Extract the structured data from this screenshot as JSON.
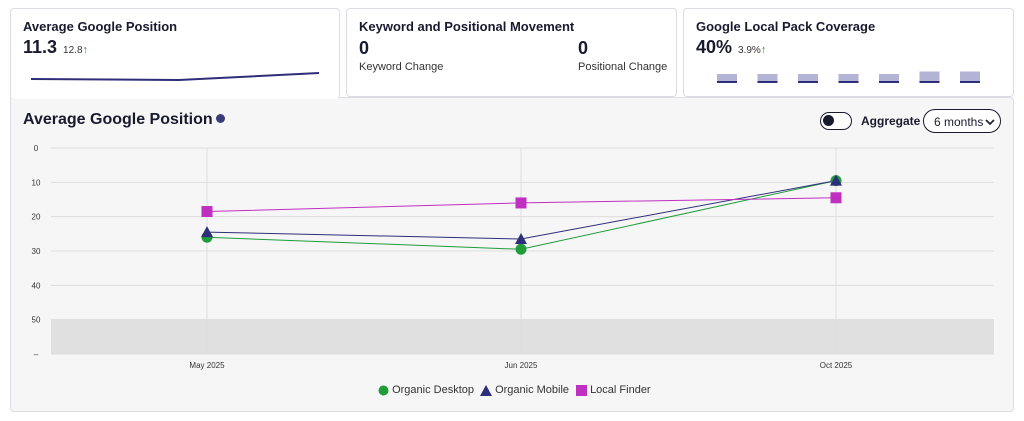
{
  "cards": {
    "avg_position": {
      "title": "Average Google Position",
      "value": "11.3",
      "delta": "12.8"
    },
    "movement": {
      "title": "Keyword and Positional Movement",
      "keyword_value": "0",
      "keyword_label": "Keyword Change",
      "positional_value": "0",
      "positional_label": "Positional Change"
    },
    "local_pack": {
      "title": "Google Local Pack Coverage",
      "value": "40%",
      "delta": "3.9%",
      "bars": [
        0.3,
        0.3,
        0.3,
        0.3,
        0.3,
        0.55,
        0.55
      ]
    }
  },
  "panel": {
    "title": "Average Google Position",
    "aggregate_label": "Aggregate",
    "range_value": "6 months"
  },
  "colors": {
    "organic_desktop": "#1f9d3a",
    "organic_mobile": "#2e2e7a",
    "local_finder": "#c030c0",
    "accent": "#2e2e7a"
  },
  "chart_data": {
    "type": "line",
    "categories": [
      "May 2025",
      "Jun 2025",
      "Oct 2025"
    ],
    "y_ticks": [
      "0",
      "10",
      "20",
      "30",
      "40",
      "50",
      "–"
    ],
    "ylim": [
      0,
      60
    ],
    "y_reversed": true,
    "shaded_from": 50,
    "series": [
      {
        "name": "Organic Desktop",
        "marker": "circle",
        "values": [
          26,
          29.5,
          9.5
        ]
      },
      {
        "name": "Organic Mobile",
        "marker": "triangle",
        "values": [
          24.5,
          26.5,
          9.5
        ]
      },
      {
        "name": "Local Finder",
        "marker": "square",
        "values": [
          18.5,
          16,
          14.5
        ]
      }
    ],
    "legend_position": "bottom"
  }
}
